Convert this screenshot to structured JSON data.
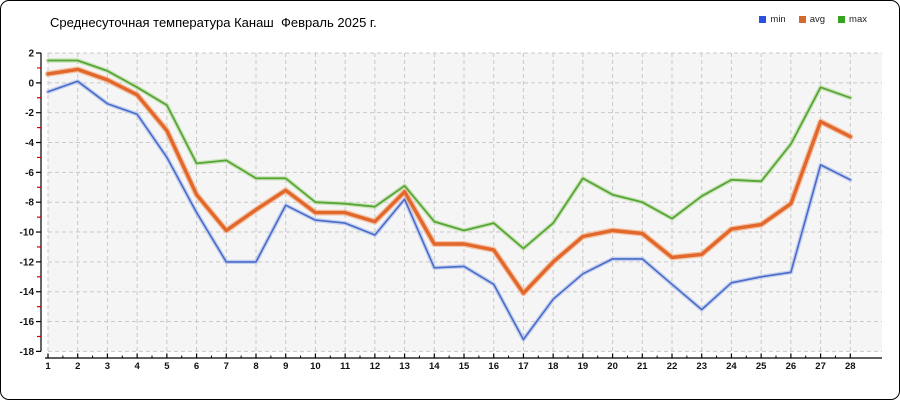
{
  "title": "Среднесуточная температура Канаш  Февраль 2025 г.",
  "legend": [
    {
      "label": "min",
      "color": "#2b50e0"
    },
    {
      "label": "avg",
      "color": "#d5682c"
    },
    {
      "label": "max",
      "color": "#36a31f"
    }
  ],
  "chart_data": {
    "type": "line",
    "title": "Среднесуточная температура Канаш  Февраль 2025 г.",
    "xlabel": "",
    "ylabel": "",
    "x": [
      1,
      2,
      3,
      4,
      5,
      6,
      7,
      8,
      9,
      10,
      11,
      12,
      13,
      14,
      15,
      16,
      17,
      18,
      19,
      20,
      21,
      22,
      23,
      24,
      25,
      26,
      27,
      28
    ],
    "ylim": [
      -18,
      2
    ],
    "y_ticks": [
      2,
      0,
      -2,
      -4,
      -6,
      -8,
      -10,
      -12,
      -14,
      -16,
      -18
    ],
    "grid": "dashed",
    "legend_position": "top-right",
    "series": [
      {
        "name": "max",
        "color": "#56a636",
        "halo": "#bcdca6",
        "width": 1.8,
        "values": [
          1.5,
          1.5,
          0.8,
          -0.3,
          -1.5,
          -5.4,
          -5.2,
          -6.4,
          -6.4,
          -8.0,
          -8.1,
          -8.3,
          -6.9,
          -9.3,
          -9.9,
          -9.4,
          -11.1,
          -9.4,
          -6.4,
          -7.5,
          -8.0,
          -9.1,
          -7.6,
          -6.5,
          -6.6,
          -4.1,
          -0.3,
          -1.0
        ]
      },
      {
        "name": "min",
        "color": "#4a6bc8",
        "halo": "#b3c3ec",
        "width": 1.6,
        "values": [
          -0.6,
          0.1,
          -1.4,
          -2.1,
          -5.0,
          -8.7,
          -12.0,
          -12.0,
          -8.2,
          -9.2,
          -9.4,
          -10.2,
          -7.8,
          -12.4,
          -12.3,
          -13.5,
          -17.2,
          -14.5,
          -12.8,
          -11.8,
          -11.8,
          -13.5,
          -15.2,
          -13.4,
          -13.0,
          -12.7,
          -5.5,
          -6.5
        ]
      },
      {
        "name": "avg",
        "color": "#e2672a",
        "halo": "#f2b28c",
        "width": 3.4,
        "values": [
          0.6,
          0.9,
          0.2,
          -0.8,
          -3.2,
          -7.5,
          -9.9,
          -8.5,
          -7.2,
          -8.7,
          -8.7,
          -9.3,
          -7.3,
          -10.8,
          -10.8,
          -11.2,
          -14.1,
          -12.0,
          -10.3,
          -9.9,
          -10.1,
          -11.7,
          -11.5,
          -9.8,
          -9.5,
          -8.1,
          -2.6,
          -3.6
        ]
      }
    ]
  },
  "style": {
    "plot_bg": "#f5f5f5",
    "grid_color": "#c9c9c9",
    "axis_color": "#000000",
    "minor_tick_color": "#cc0000",
    "tick_label_color": "#111111"
  }
}
